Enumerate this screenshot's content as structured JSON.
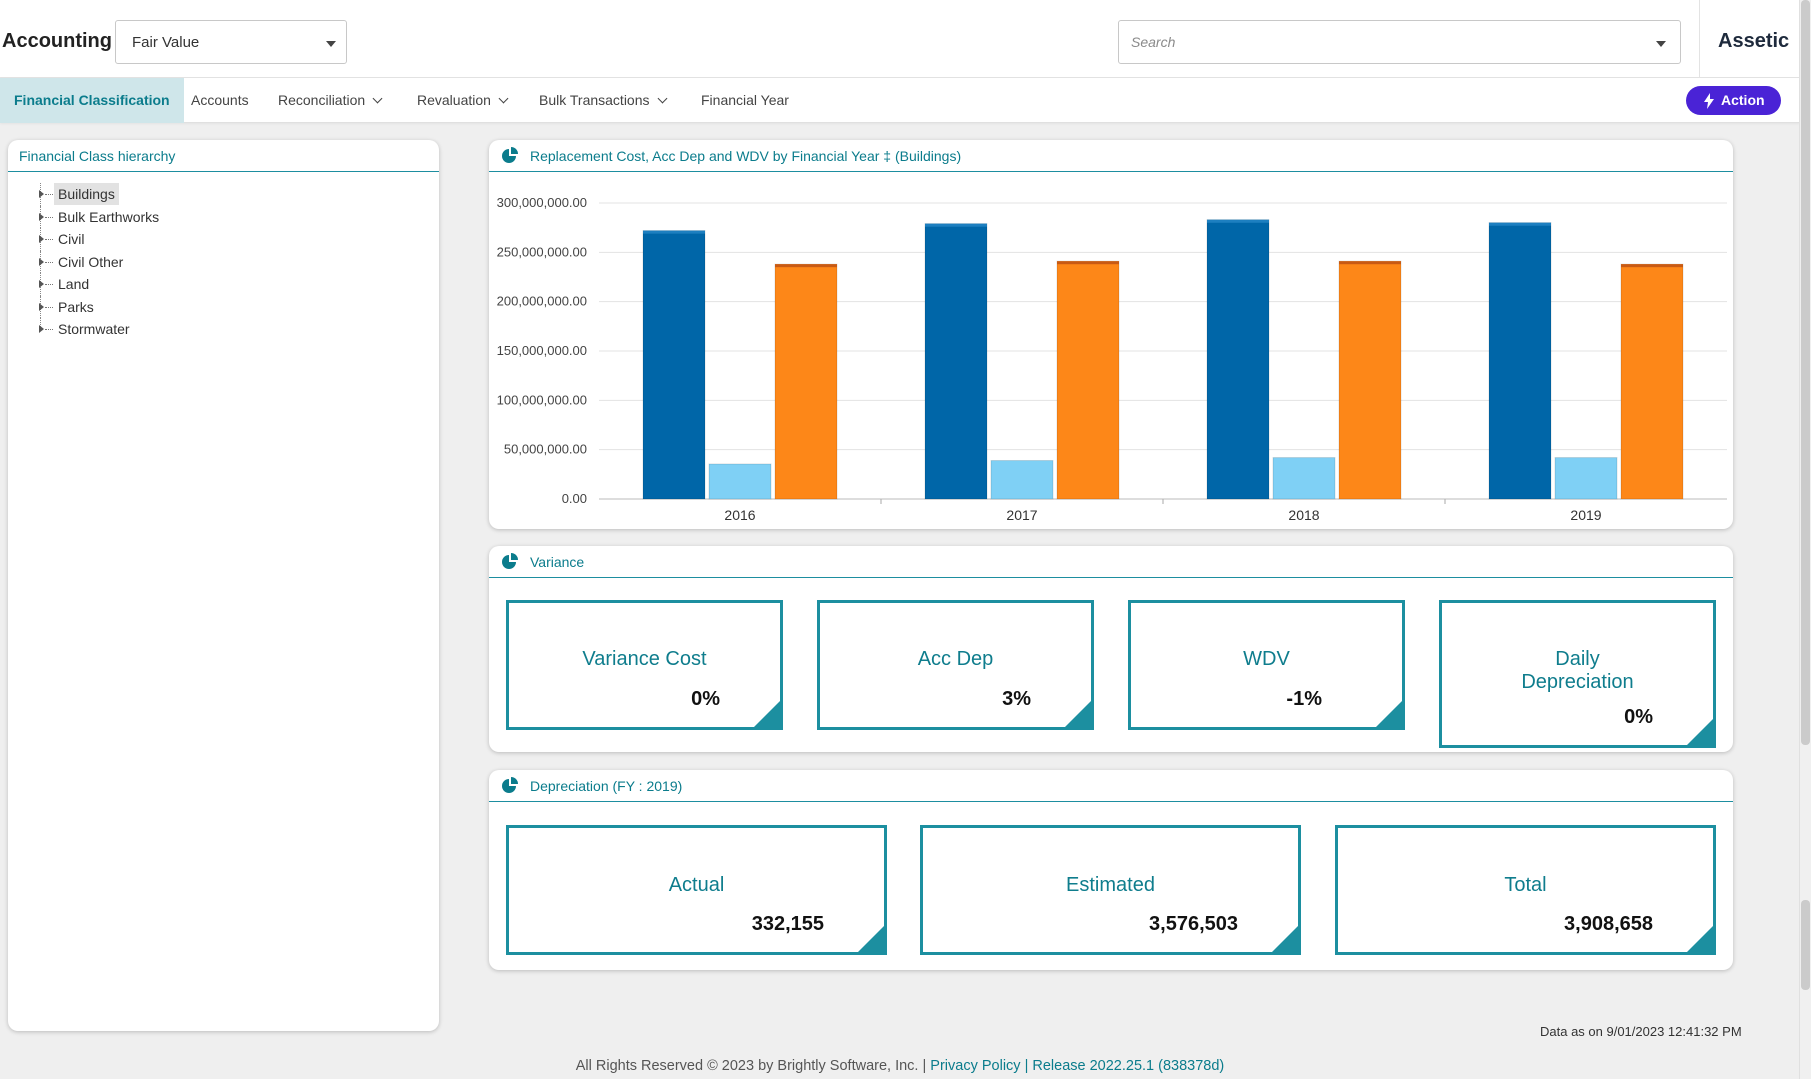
{
  "header": {
    "app_title": "Accounting",
    "module_select": "Fair Value",
    "search_placeholder": "Search",
    "brand": "Assetic"
  },
  "nav": {
    "items": [
      {
        "label": "Financial Classification",
        "active": true,
        "has_menu": false
      },
      {
        "label": "Accounts",
        "active": false,
        "has_menu": false
      },
      {
        "label": "Reconciliation",
        "active": false,
        "has_menu": true
      },
      {
        "label": "Revaluation",
        "active": false,
        "has_menu": true
      },
      {
        "label": "Bulk Transactions",
        "active": false,
        "has_menu": true
      },
      {
        "label": "Financial Year",
        "active": false,
        "has_menu": false
      }
    ],
    "action_label": "Action"
  },
  "hierarchy": {
    "title": "Financial Class hierarchy",
    "items": [
      "Buildings",
      "Bulk Earthworks",
      "Civil",
      "Civil Other",
      "Land",
      "Parks",
      "Stormwater"
    ],
    "selected": "Buildings"
  },
  "chart_panel": {
    "title": "Replacement Cost, Acc Dep and WDV by Financial Year ‡ (Buildings)"
  },
  "chart_data": {
    "type": "bar",
    "categories": [
      "2016",
      "2017",
      "2018",
      "2019"
    ],
    "series": [
      {
        "values": [
          272000000,
          279000000,
          283000000,
          280000000
        ],
        "color": "#0066a8"
      },
      {
        "values": [
          35500000,
          39000000,
          42000000,
          42000000
        ],
        "color": "#7fd0f5"
      },
      {
        "values": [
          238000000,
          241000000,
          241000000,
          238000000
        ],
        "color": "#fd8718"
      }
    ],
    "y_ticks": [
      "300,000,000.00",
      "250,000,000.00",
      "200,000,000.00",
      "150,000,000.00",
      "100,000,000.00",
      "50,000,000.00",
      "0.00"
    ],
    "ylim": [
      0,
      300000000
    ],
    "grid": true,
    "legend": "none"
  },
  "variance": {
    "title": "Variance",
    "cards": [
      {
        "label": "Variance Cost",
        "value": "0%"
      },
      {
        "label": "Acc Dep",
        "value": "3%"
      },
      {
        "label": "WDV",
        "value": "-1%"
      },
      {
        "label": "Daily Depreciation",
        "value": "0%"
      }
    ]
  },
  "depreciation": {
    "title": "Depreciation (FY : 2019)",
    "cards": [
      {
        "label": "Actual",
        "value": "332,155"
      },
      {
        "label": "Estimated",
        "value": "3,576,503"
      },
      {
        "label": "Total",
        "value": "3,908,658"
      }
    ]
  },
  "data_as_on": "Data as on 9/01/2023 12:41:32 PM",
  "footer": {
    "copyright": "All Rights Reserved © 2023 by Brightly Software, Inc. |",
    "privacy": "Privacy Policy",
    "separator": "|",
    "release": "Release 2022.25.1 (838378d)"
  },
  "colors": {
    "accent": "#0b7c8c",
    "action": "#4a23d6",
    "card_border": "#1c8fa0"
  }
}
